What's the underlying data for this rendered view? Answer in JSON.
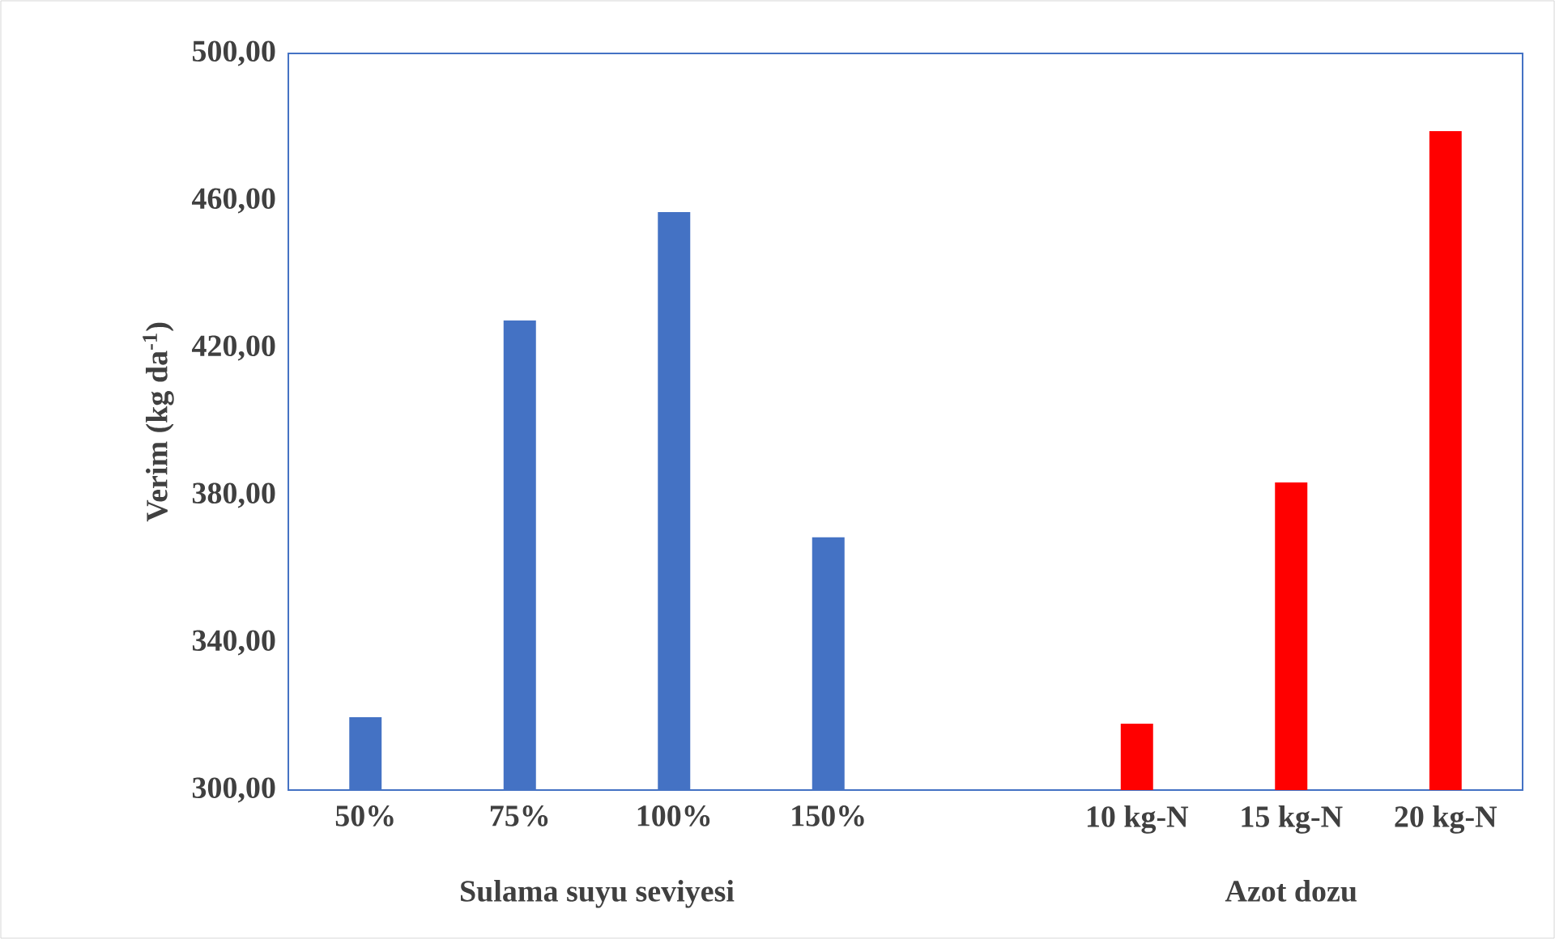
{
  "chart_data": {
    "type": "bar",
    "ylabel": "Verim (kg da$^{-1}$)",
    "categories": [
      "50%",
      "75%",
      "100%",
      "150%",
      null,
      "10 kg-N",
      "15 kg-N",
      "20 kg-N"
    ],
    "values": [
      319.8,
      427.5,
      456.9,
      368.6,
      null,
      318.0,
      383.5,
      478.9
    ],
    "colors": [
      "#4472c4",
      "#4472c4",
      "#4472c4",
      "#4472c4",
      "#4472c4",
      "#ff0000",
      "#ff0000",
      "#ff0000"
    ],
    "ylim": [
      300,
      500
    ],
    "yticks": [
      {
        "value": 300,
        "label": "300,00"
      },
      {
        "value": 340,
        "label": "340,00"
      },
      {
        "value": 380,
        "label": "380,00"
      },
      {
        "value": 420,
        "label": "420,00"
      },
      {
        "value": 460,
        "label": "460,00"
      },
      {
        "value": 500,
        "label": "500,00"
      }
    ],
    "annotations": [
      "Sulama suyu seviyesi",
      "Azot dozu"
    ],
    "grid": false
  }
}
